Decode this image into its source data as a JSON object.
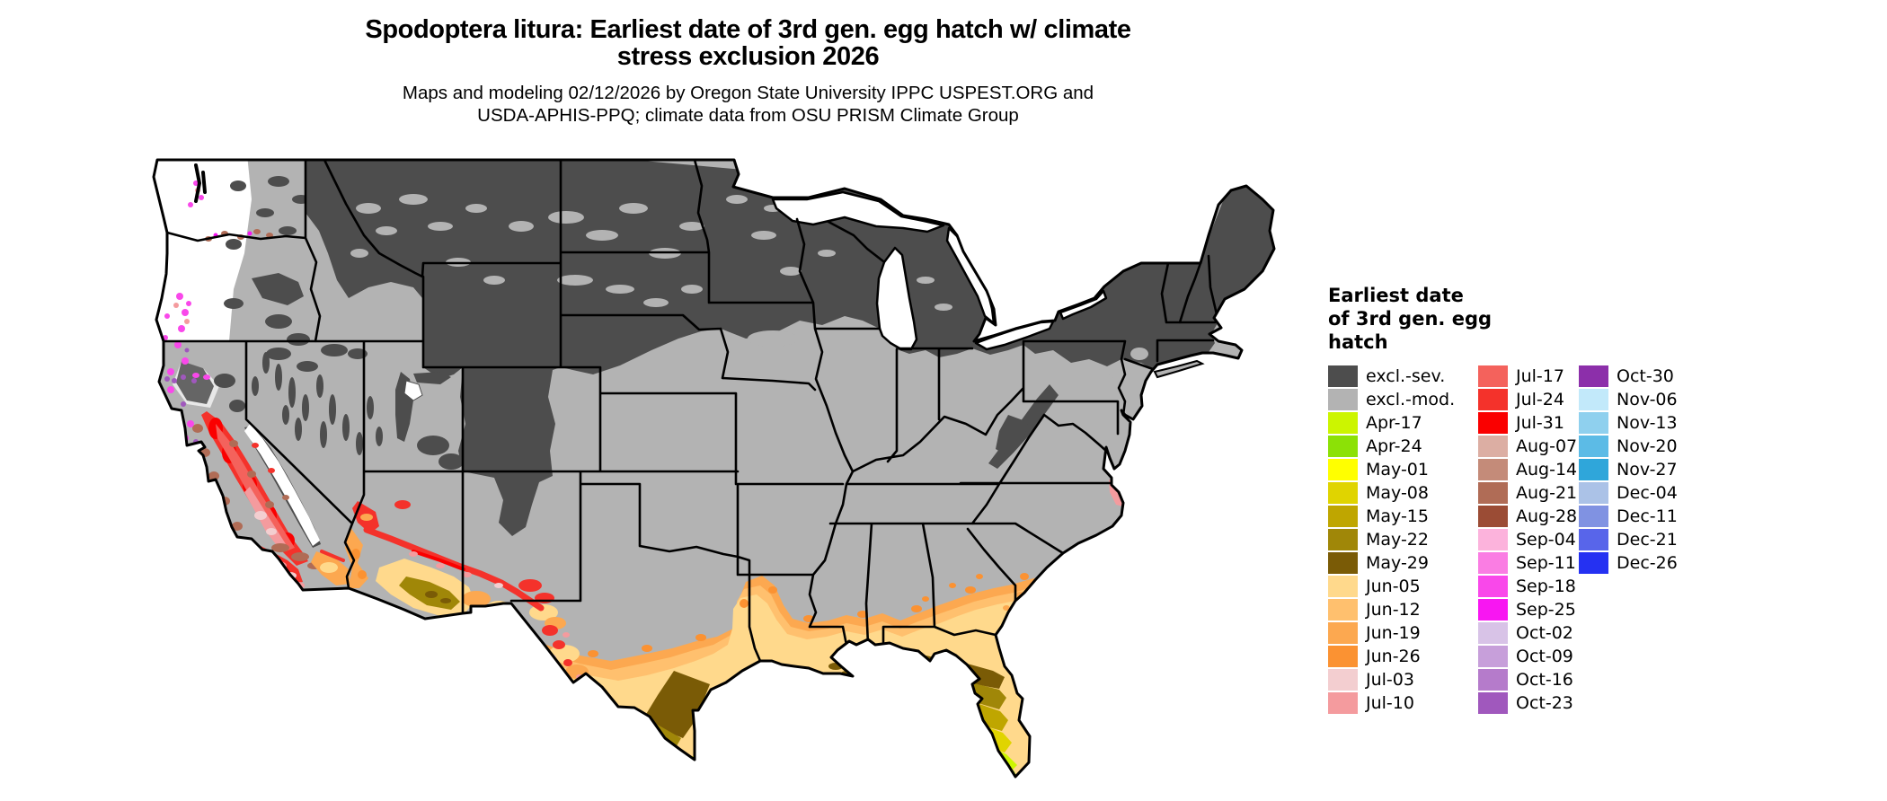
{
  "title": {
    "line1": "Spodoptera litura: Earliest date of 3rd gen. egg hatch w/ climate",
    "line2": "stress exclusion 2026"
  },
  "subtitle": {
    "line1": "Maps and modeling 02/12/2026 by Oregon State University IPPC USPEST.ORG and",
    "line2": "USDA-APHIS-PPQ; climate data from OSU PRISM Climate Group"
  },
  "legend": {
    "title_lines": [
      "Earliest date",
      "of 3rd gen. egg",
      "hatch"
    ],
    "columns": [
      [
        {
          "label": "excl.-sev.",
          "color": "#4D4D4D"
        },
        {
          "label": "excl.-mod.",
          "color": "#B3B3B3"
        },
        {
          "label": "Apr-17",
          "color": "#CCF500"
        },
        {
          "label": "Apr-24",
          "color": "#8CE106"
        },
        {
          "label": "May-01",
          "color": "#FFFF00"
        },
        {
          "label": "May-08",
          "color": "#E0D400"
        },
        {
          "label": "May-15",
          "color": "#BFA600"
        },
        {
          "label": "May-22",
          "color": "#A08708"
        },
        {
          "label": "May-29",
          "color": "#7A5B06"
        },
        {
          "label": "Jun-05",
          "color": "#FFD98C"
        },
        {
          "label": "Jun-12",
          "color": "#FFC06E"
        },
        {
          "label": "Jun-19",
          "color": "#FCA850"
        },
        {
          "label": "Jun-26",
          "color": "#FB9232"
        },
        {
          "label": "Jul-03",
          "color": "#F3CED0"
        },
        {
          "label": "Jul-10",
          "color": "#F49B9E"
        }
      ],
      [
        {
          "label": "Jul-17",
          "color": "#F4625C"
        },
        {
          "label": "Jul-24",
          "color": "#F4322B"
        },
        {
          "label": "Jul-31",
          "color": "#FA0000"
        },
        {
          "label": "Aug-07",
          "color": "#DCAEA3"
        },
        {
          "label": "Aug-14",
          "color": "#C48B79"
        },
        {
          "label": "Aug-21",
          "color": "#B06C56"
        },
        {
          "label": "Aug-28",
          "color": "#9B4C35"
        },
        {
          "label": "Sep-04",
          "color": "#FCB3DC"
        },
        {
          "label": "Sep-11",
          "color": "#FA7DE3"
        },
        {
          "label": "Sep-18",
          "color": "#F948EA"
        },
        {
          "label": "Sep-25",
          "color": "#F816F2"
        },
        {
          "label": "Oct-02",
          "color": "#D8C3E7"
        },
        {
          "label": "Oct-09",
          "color": "#C79FDA"
        },
        {
          "label": "Oct-16",
          "color": "#B57BCB"
        },
        {
          "label": "Oct-23",
          "color": "#A058BD"
        }
      ],
      [
        {
          "label": "Oct-30",
          "color": "#8C2FAA"
        },
        {
          "label": "Nov-06",
          "color": "#C2E9FA"
        },
        {
          "label": "Nov-13",
          "color": "#8FD0EE"
        },
        {
          "label": "Nov-20",
          "color": "#5CBBE6"
        },
        {
          "label": "Nov-27",
          "color": "#2FA6DA"
        },
        {
          "label": "Dec-04",
          "color": "#ABC2E7"
        },
        {
          "label": "Dec-11",
          "color": "#8092E2"
        },
        {
          "label": "Dec-21",
          "color": "#5865EA"
        },
        {
          "label": "Dec-26",
          "color": "#2531F2"
        }
      ]
    ]
  },
  "map": {
    "kind": "US CONUS choropleth raster with state borders",
    "regions": [
      {
        "area": "Northern tier (MT, Dakotas, MN, WI, MI, NY, New England) and Rockies",
        "category": "excl.-sev."
      },
      {
        "area": "Central plains, Midwest, mid-Atlantic, interior Southeast, NV/UT basins",
        "category": "excl.-mod."
      },
      {
        "area": "Western WA/OR lowlands and Cascades/Sierra crest",
        "category": "no data (white)"
      },
      {
        "area": "Oregon/Washington coast and valleys",
        "category": "Sep-Oct (magenta/purple specks)"
      },
      {
        "area": "California Central Valley",
        "category": "Jul-03 to Jul-31 (red/pink)"
      },
      {
        "area": "California coast ranges",
        "category": "Aug (brown) and Sep (magenta) specks"
      },
      {
        "area": "Southern Nevada and Mogollon Rim fringe",
        "category": "Jul-24 / Jul-31 (red)"
      },
      {
        "area": "SW Arizona deserts",
        "category": "Jun-19 / Jun-26 (orange)"
      },
      {
        "area": "South-central Arizona",
        "category": "May-22 / May-29 (olive)"
      },
      {
        "area": "Gulf Coast plain TX-LA-MS-AL-GA-SC",
        "category": "Jun-05 to Jun-26 (peach/orange)"
      },
      {
        "area": "South Texas",
        "category": "May-01 to May-29 (yellow/olive)"
      },
      {
        "area": "Florida peninsula",
        "category": "Apr-17 to Jun-05 (green to peach gradient)"
      },
      {
        "area": "NC/VA Outer Banks spot",
        "category": "Jul-10 (pink)"
      }
    ]
  }
}
